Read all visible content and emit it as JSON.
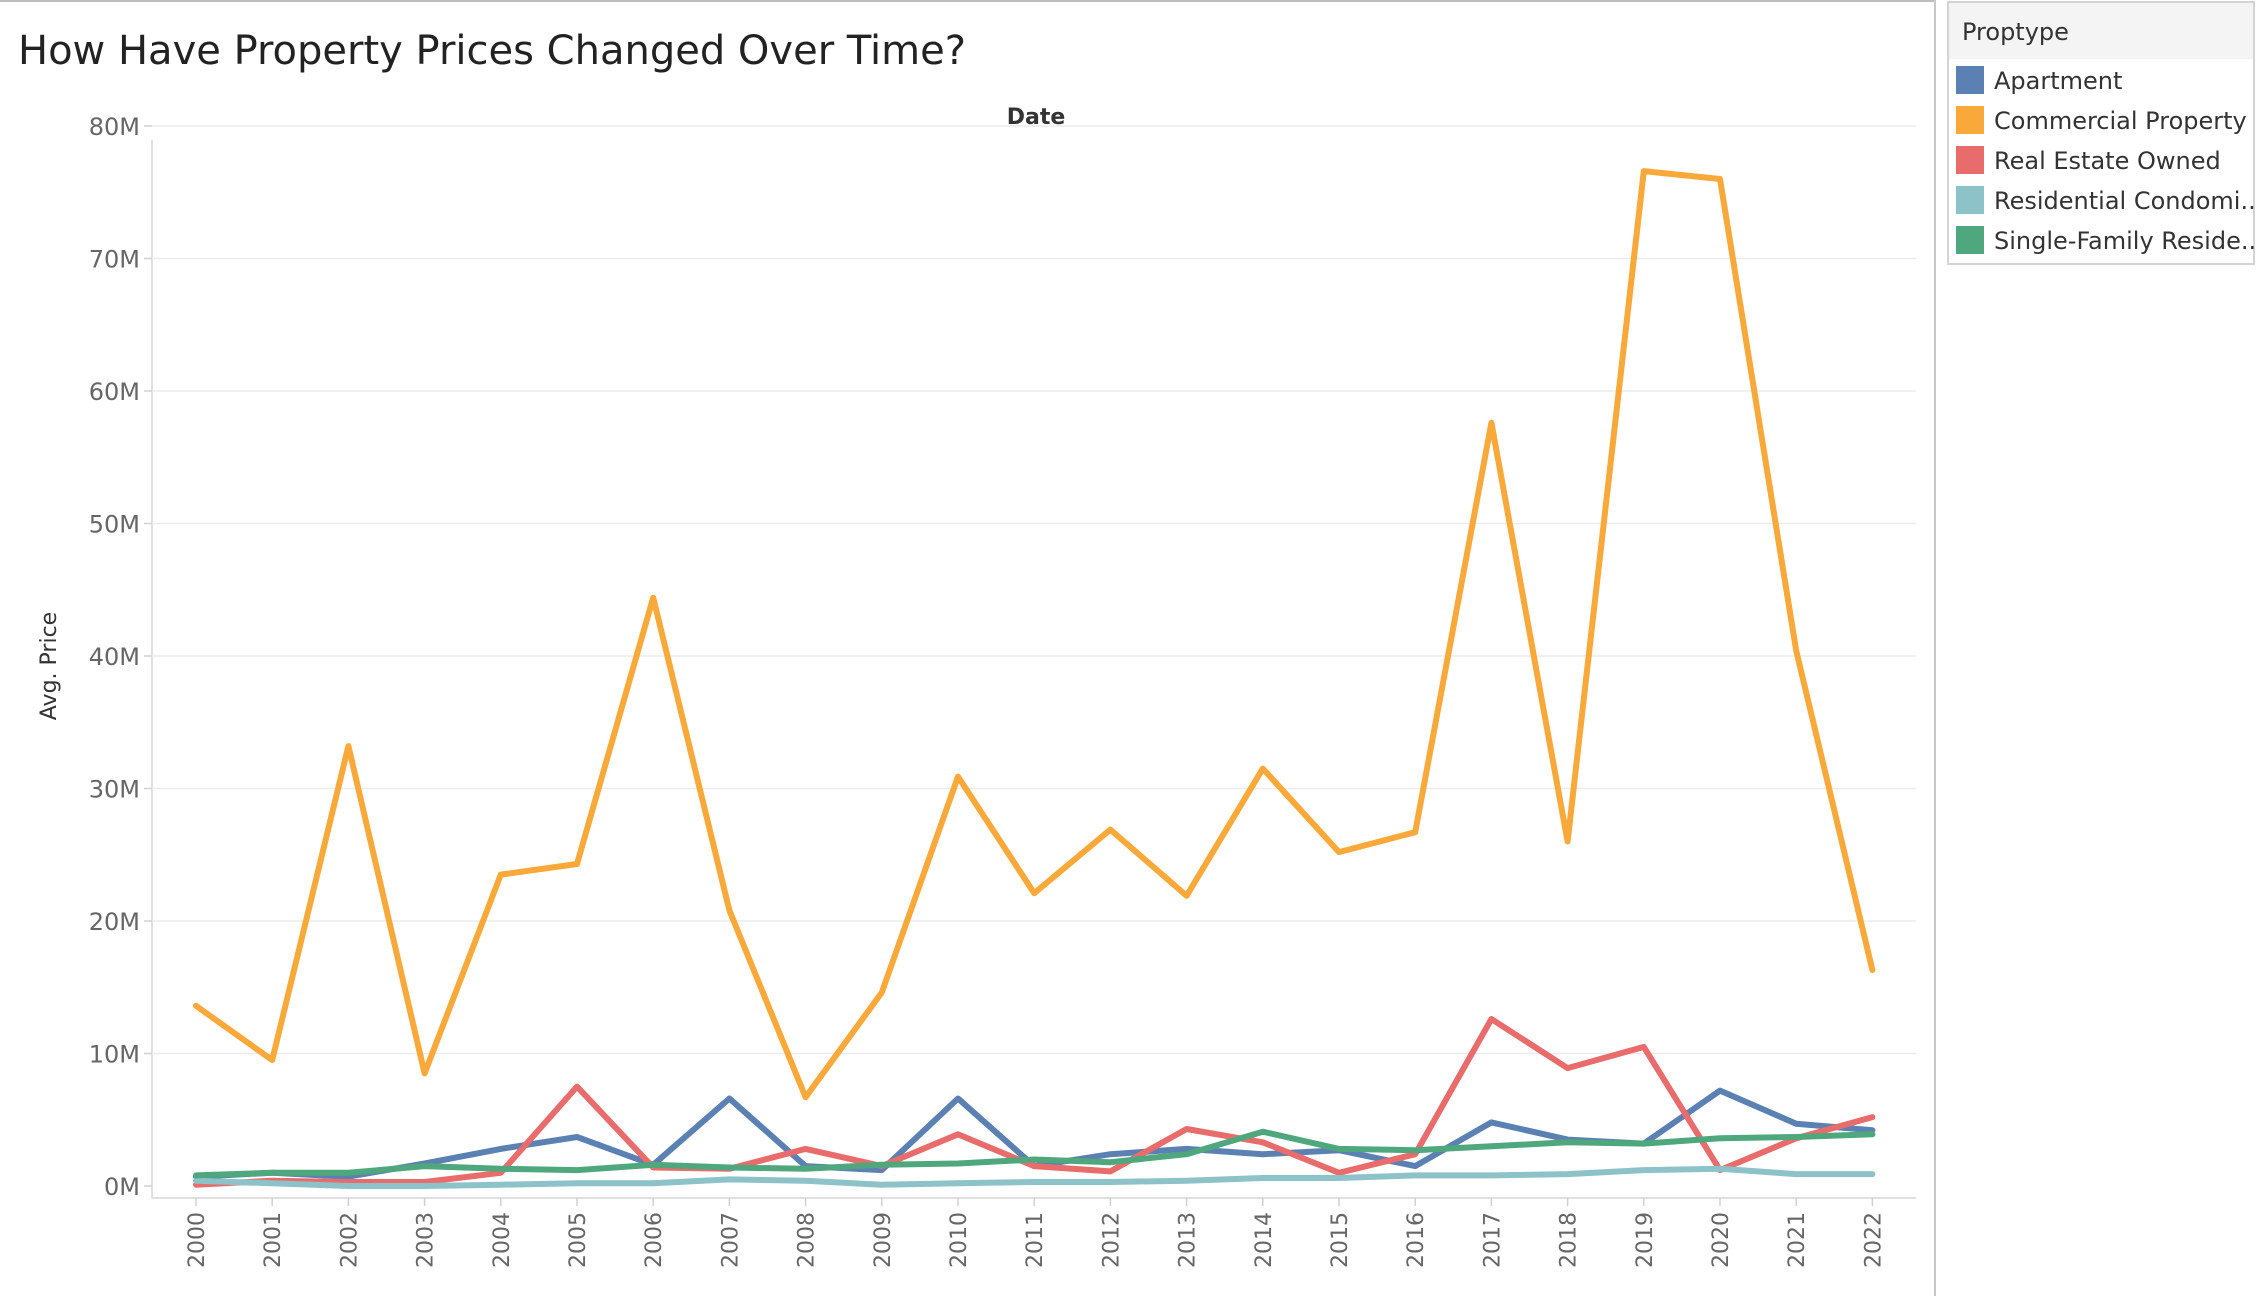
{
  "chart_data": {
    "type": "line",
    "title": "How Have Property Prices Changed Over Time?",
    "column_header": "Date",
    "xlabel": "",
    "ylabel": "Avg. Price",
    "ylim": [
      0,
      80000000
    ],
    "y_ticks": [
      "0M",
      "10M",
      "20M",
      "30M",
      "40M",
      "50M",
      "60M",
      "70M",
      "80M"
    ],
    "grid": true,
    "legend": {
      "title": "Proptype",
      "placement": "top-right",
      "labels": [
        "Apartment",
        "Commercial Property",
        "Real Estate Owned",
        "Residential Condomi..",
        "Single-Family Reside.."
      ]
    },
    "x": [
      "2000",
      "2001",
      "2002",
      "2003",
      "2004",
      "2005",
      "2006",
      "2007",
      "2008",
      "2009",
      "2010",
      "2011",
      "2012",
      "2013",
      "2014",
      "2015",
      "2016",
      "2017",
      "2018",
      "2019",
      "2020",
      "2021",
      "2022"
    ],
    "series": [
      {
        "name": "Apartment",
        "color": "#5b80b2",
        "values": [
          0.7,
          1.0,
          0.7,
          1.7,
          2.8,
          3.7,
          1.6,
          6.6,
          1.5,
          1.2,
          6.6,
          1.5,
          2.4,
          2.8,
          2.4,
          2.7,
          1.5,
          4.8,
          3.5,
          3.2,
          7.2,
          4.7,
          4.2
        ]
      },
      {
        "name": "Commercial Property",
        "color": "#f8a93a",
        "values": [
          13.6,
          9.5,
          33.2,
          8.5,
          23.5,
          24.3,
          44.4,
          20.8,
          6.7,
          14.6,
          30.9,
          22.1,
          26.9,
          21.9,
          31.5,
          25.2,
          26.7,
          57.6,
          26.0,
          76.6,
          76.0,
          40.4,
          16.3
        ]
      },
      {
        "name": "Real Estate Owned",
        "color": "#e86c6c",
        "values": [
          0.1,
          0.4,
          0.3,
          0.3,
          1.0,
          7.5,
          1.4,
          1.3,
          2.8,
          1.5,
          3.9,
          1.5,
          1.1,
          4.3,
          3.3,
          1.0,
          2.4,
          12.6,
          8.9,
          10.5,
          1.2,
          3.6,
          5.2
        ]
      },
      {
        "name": "Residential Condomi..",
        "color": "#8cc2c8",
        "values": [
          0.4,
          0.2,
          0.0,
          0.0,
          0.1,
          0.2,
          0.2,
          0.5,
          0.4,
          0.1,
          0.2,
          0.3,
          0.3,
          0.4,
          0.6,
          0.6,
          0.8,
          0.8,
          0.9,
          1.2,
          1.3,
          0.9,
          0.9
        ]
      },
      {
        "name": "Single-Family Reside..",
        "color": "#4fa87d",
        "values": [
          0.8,
          1.0,
          1.0,
          1.5,
          1.3,
          1.2,
          1.6,
          1.4,
          1.3,
          1.6,
          1.7,
          2.0,
          1.8,
          2.4,
          4.1,
          2.8,
          2.7,
          3.0,
          3.3,
          3.2,
          3.6,
          3.7,
          3.9
        ]
      }
    ]
  }
}
